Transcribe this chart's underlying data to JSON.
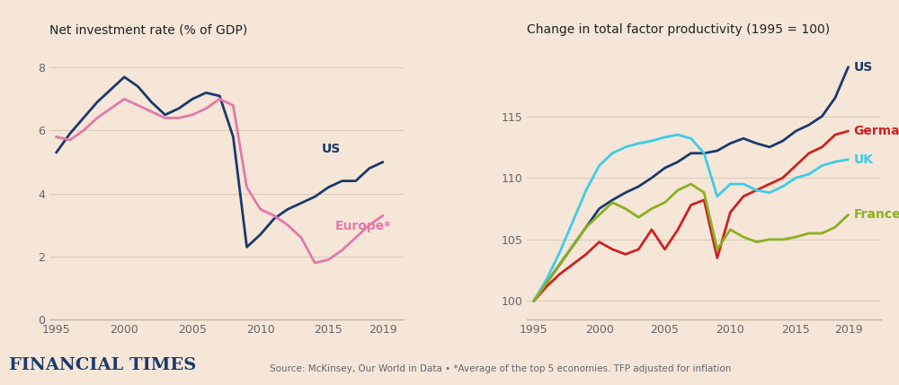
{
  "bg_color": "#f5e6d8",
  "left_title": "Net investment rate (% of GDP)",
  "right_title": "Change in total factor productivity (1995 = 100)",
  "footer_left": "FINANCIAL TIMES",
  "footer_right": "Source: McKinsey, Our World in Data • *Average of the top 5 economies. TFP adjusted for inflation",
  "left_us_x": [
    1995,
    1996,
    1997,
    1998,
    1999,
    2000,
    2001,
    2002,
    2003,
    2004,
    2005,
    2006,
    2007,
    2008,
    2009,
    2010,
    2011,
    2012,
    2013,
    2014,
    2015,
    2016,
    2017,
    2018,
    2019
  ],
  "left_us_y": [
    5.3,
    5.9,
    6.4,
    6.9,
    7.3,
    7.7,
    7.4,
    6.9,
    6.5,
    6.7,
    7.0,
    7.2,
    7.1,
    5.8,
    2.3,
    2.7,
    3.2,
    3.5,
    3.7,
    3.9,
    4.2,
    4.4,
    4.4,
    4.8,
    5.0
  ],
  "left_eu_x": [
    1995,
    1996,
    1997,
    1998,
    1999,
    2000,
    2001,
    2002,
    2003,
    2004,
    2005,
    2006,
    2007,
    2008,
    2009,
    2010,
    2011,
    2012,
    2013,
    2014,
    2015,
    2016,
    2017,
    2018,
    2019
  ],
  "left_eu_y": [
    5.8,
    5.7,
    6.0,
    6.4,
    6.7,
    7.0,
    6.8,
    6.6,
    6.4,
    6.4,
    6.5,
    6.7,
    7.0,
    6.8,
    4.2,
    3.5,
    3.3,
    3.0,
    2.6,
    1.8,
    1.9,
    2.2,
    2.6,
    3.0,
    3.3
  ],
  "left_us_color": "#1a3a6b",
  "left_eu_color": "#e07aaa",
  "left_ylim": [
    0,
    8.8
  ],
  "left_yticks": [
    0,
    2,
    4,
    6,
    8
  ],
  "left_xlim": [
    1994.5,
    2020.5
  ],
  "left_xticks": [
    1995,
    2000,
    2005,
    2010,
    2015,
    2019
  ],
  "right_us_x": [
    1995,
    1996,
    1997,
    1998,
    1999,
    2000,
    2001,
    2002,
    2003,
    2004,
    2005,
    2006,
    2007,
    2008,
    2009,
    2010,
    2011,
    2012,
    2013,
    2014,
    2015,
    2016,
    2017,
    2018,
    2019
  ],
  "right_us_y": [
    100,
    101.5,
    103.0,
    104.5,
    106.0,
    107.5,
    108.2,
    108.8,
    109.3,
    110.0,
    110.8,
    111.3,
    112.0,
    112.0,
    112.2,
    112.8,
    113.2,
    112.8,
    112.5,
    113.0,
    113.8,
    114.3,
    115.0,
    116.5,
    119.0
  ],
  "right_germany_x": [
    1995,
    1996,
    1997,
    1998,
    1999,
    2000,
    2001,
    2002,
    2003,
    2004,
    2005,
    2006,
    2007,
    2008,
    2009,
    2010,
    2011,
    2012,
    2013,
    2014,
    2015,
    2016,
    2017,
    2018,
    2019
  ],
  "right_germany_y": [
    100,
    101.2,
    102.2,
    103.0,
    103.8,
    104.8,
    104.2,
    103.8,
    104.2,
    105.8,
    104.2,
    105.8,
    107.8,
    108.2,
    103.5,
    107.2,
    108.5,
    109.0,
    109.5,
    110.0,
    111.0,
    112.0,
    112.5,
    113.5,
    113.8
  ],
  "right_uk_x": [
    1995,
    1996,
    1997,
    1998,
    1999,
    2000,
    2001,
    2002,
    2003,
    2004,
    2005,
    2006,
    2007,
    2008,
    2009,
    2010,
    2011,
    2012,
    2013,
    2014,
    2015,
    2016,
    2017,
    2018,
    2019
  ],
  "right_uk_y": [
    100,
    101.8,
    104.0,
    106.5,
    109.0,
    111.0,
    112.0,
    112.5,
    112.8,
    113.0,
    113.3,
    113.5,
    113.2,
    112.0,
    108.5,
    109.5,
    109.5,
    109.0,
    108.8,
    109.3,
    110.0,
    110.3,
    111.0,
    111.3,
    111.5
  ],
  "right_france_x": [
    1995,
    1996,
    1997,
    1998,
    1999,
    2000,
    2001,
    2002,
    2003,
    2004,
    2005,
    2006,
    2007,
    2008,
    2009,
    2010,
    2011,
    2012,
    2013,
    2014,
    2015,
    2016,
    2017,
    2018,
    2019
  ],
  "right_france_y": [
    100,
    101.5,
    103.0,
    104.5,
    106.0,
    107.0,
    108.0,
    107.5,
    106.8,
    107.5,
    108.0,
    109.0,
    109.5,
    108.8,
    104.2,
    105.8,
    105.2,
    104.8,
    105.0,
    105.0,
    105.2,
    105.5,
    105.5,
    106.0,
    107.0
  ],
  "right_us_color": "#1a3a6b",
  "right_germany_color": "#cc2222",
  "right_uk_color": "#3dcce8",
  "right_france_color": "#8ab020",
  "right_ylim": [
    98.5,
    121
  ],
  "right_yticks": [
    100,
    105,
    110,
    115
  ],
  "right_xlim": [
    1994.5,
    2021.5
  ],
  "right_xticks": [
    1995,
    2000,
    2005,
    2010,
    2015,
    2019
  ]
}
